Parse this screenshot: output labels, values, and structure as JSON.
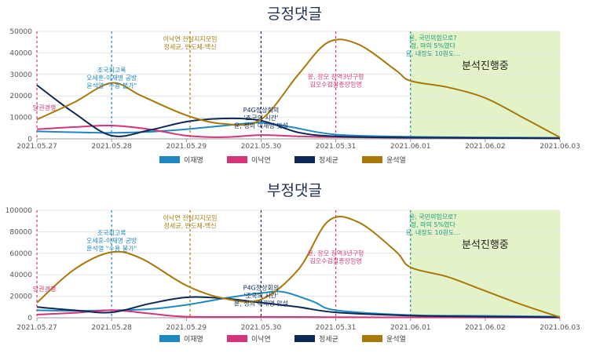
{
  "colors": {
    "이재명": "#1f88c2",
    "이낙연": "#d6347a",
    "정세균": "#0e2856",
    "윤석열": "#a8780a",
    "shade": "#e4f3c7"
  },
  "chart_data": [
    {
      "type": "line",
      "title": "긍정댓글",
      "categories": [
        "2021.05.27",
        "2021.05.28",
        "2021.05.29",
        "2021.05.30",
        "2021.05.31",
        "2021.06.01",
        "2021.06.02",
        "2021.06.03"
      ],
      "yticks": [
        "0",
        "10000",
        "20000",
        "30000",
        "40000",
        "50000"
      ],
      "ylim": [
        0,
        50000
      ],
      "legend_position": "bottom",
      "shaded_region": {
        "from": "2021.06.01",
        "to": "2021.06.03",
        "label": "분석진행중"
      },
      "series": [
        {
          "name": "이재명",
          "points": [
            [
              0,
              3500
            ],
            [
              0.6,
              3000
            ],
            [
              1,
              2800
            ],
            [
              1.5,
              3300
            ],
            [
              2,
              4500
            ],
            [
              2.6,
              6500
            ],
            [
              3,
              7500
            ],
            [
              3.4,
              5500
            ],
            [
              4,
              2000
            ],
            [
              5,
              1000
            ],
            [
              6,
              700
            ],
            [
              7,
              500
            ]
          ]
        },
        {
          "name": "이낙연",
          "points": [
            [
              0,
              4500
            ],
            [
              0.5,
              5500
            ],
            [
              1,
              6200
            ],
            [
              1.5,
              4500
            ],
            [
              2,
              1500
            ],
            [
              2.5,
              800
            ],
            [
              3,
              1800
            ],
            [
              3.5,
              1200
            ],
            [
              4,
              800
            ],
            [
              5,
              500
            ],
            [
              6,
              400
            ],
            [
              7,
              300
            ]
          ]
        },
        {
          "name": "정세균",
          "points": [
            [
              0,
              25000
            ],
            [
              0.5,
              12000
            ],
            [
              1,
              1500
            ],
            [
              1.5,
              4000
            ],
            [
              2,
              8000
            ],
            [
              2.5,
              9500
            ],
            [
              3,
              8500
            ],
            [
              3.5,
              3000
            ],
            [
              4,
              1200
            ],
            [
              5,
              600
            ],
            [
              6,
              400
            ],
            [
              7,
              300
            ]
          ]
        },
        {
          "name": "윤석열",
          "points": [
            [
              0,
              9000
            ],
            [
              0.5,
              17000
            ],
            [
              1,
              26000
            ],
            [
              1.4,
              20000
            ],
            [
              2,
              11000
            ],
            [
              2.5,
              7000
            ],
            [
              3,
              9000
            ],
            [
              3.5,
              30000
            ],
            [
              3.9,
              45000
            ],
            [
              4.3,
              44000
            ],
            [
              4.8,
              32000
            ],
            [
              5,
              27000
            ],
            [
              5.5,
              24000
            ],
            [
              6,
              19000
            ],
            [
              6.5,
              10000
            ],
            [
              7,
              700
            ]
          ]
        }
      ],
      "annotations": [
        {
          "x": 0,
          "color": "#d6347a",
          "lines": [
            "당권경쟁"
          ],
          "text_x": 0.1,
          "text_y": 13500
        },
        {
          "x": 1,
          "color": "#1f88c2",
          "lines": [
            "조국회고록",
            "오세훈-이재명 공방",
            "윤석열 \"수용 불가\""
          ],
          "text_x": 1.0,
          "text_y": 31000
        },
        {
          "x": 2.05,
          "color": "#a8780a",
          "lines": [
            "이낙연 전남지지모임",
            "정세균, 반도체-백신"
          ],
          "text_x": 2.05,
          "text_y": 45500
        },
        {
          "x": 3.0,
          "color": "#0e2856",
          "lines": [
            "P4G정상회의",
            "'조국의 시간'",
            "윤, 정의 이재명 맞설"
          ],
          "text_x": 3.0,
          "text_y": 12500
        },
        {
          "x": 4.0,
          "color": "#d6347a",
          "lines": [
            "윤, 장모 징역3년구형",
            "김오수검찰총장임명"
          ],
          "text_x": 4.0,
          "text_y": 28000
        },
        {
          "x": 5.0,
          "color": "#1a9a8a",
          "lines": [
            "윤, 국민의힘으로?",
            "정, 마의 5%였다",
            "윤, 내장도 10원도..."
          ],
          "text_x": 5.3,
          "text_y": 46000
        }
      ]
    },
    {
      "type": "line",
      "title": "부정댓글",
      "categories": [
        "2021.05.27",
        "2021.05.28",
        "2021.05.29",
        "2021.05.30",
        "2021.05.31",
        "2021.06.01",
        "2021.06.02",
        "2021.06.03"
      ],
      "yticks": [
        "0",
        "20000",
        "40000",
        "60000",
        "80000",
        "100000"
      ],
      "ylim": [
        0,
        100000
      ],
      "legend_position": "bottom",
      "shaded_region": {
        "from": "2021.06.01",
        "to": "2021.06.03",
        "label": "분석진행중"
      },
      "series": [
        {
          "name": "이재명",
          "points": [
            [
              0,
              7000
            ],
            [
              0.5,
              6500
            ],
            [
              1,
              7000
            ],
            [
              1.5,
              8000
            ],
            [
              2,
              12000
            ],
            [
              2.5,
              18000
            ],
            [
              3,
              23000
            ],
            [
              3.3,
              24000
            ],
            [
              3.7,
              15000
            ],
            [
              4,
              7000
            ],
            [
              5,
              2500
            ],
            [
              6,
              1800
            ],
            [
              7,
              1000
            ]
          ]
        },
        {
          "name": "이낙연",
          "points": [
            [
              0,
              3000
            ],
            [
              0.5,
              4500
            ],
            [
              1,
              7000
            ],
            [
              1.5,
              4000
            ],
            [
              2,
              1000
            ],
            [
              3,
              800
            ],
            [
              4,
              600
            ],
            [
              5,
              400
            ],
            [
              6,
              300
            ],
            [
              7,
              200
            ]
          ]
        },
        {
          "name": "정세균",
          "points": [
            [
              0,
              10000
            ],
            [
              0.5,
              7000
            ],
            [
              1,
              5000
            ],
            [
              1.5,
              13000
            ],
            [
              2,
              19000
            ],
            [
              2.5,
              18000
            ],
            [
              3,
              14000
            ],
            [
              3.5,
              10000
            ],
            [
              4,
              5000
            ],
            [
              5,
              2000
            ],
            [
              6,
              1000
            ],
            [
              7,
              500
            ]
          ]
        },
        {
          "name": "윤석열",
          "points": [
            [
              0,
              14000
            ],
            [
              0.5,
              45000
            ],
            [
              1,
              61000
            ],
            [
              1.4,
              55000
            ],
            [
              2,
              30000
            ],
            [
              2.5,
              18000
            ],
            [
              3,
              17000
            ],
            [
              3.5,
              45000
            ],
            [
              3.9,
              90000
            ],
            [
              4.3,
              89000
            ],
            [
              4.8,
              62000
            ],
            [
              5,
              47000
            ],
            [
              5.5,
              38000
            ],
            [
              6,
              25000
            ],
            [
              6.5,
              12000
            ],
            [
              7,
              500
            ]
          ]
        }
      ],
      "annotations": [
        {
          "x": 0,
          "color": "#d6347a",
          "lines": [
            "당권경쟁"
          ],
          "text_x": 0.1,
          "text_y": 25000
        },
        {
          "x": 1,
          "color": "#1f88c2",
          "lines": [
            "조국회고록",
            "오세훈-이재명 공방",
            "윤석열 \"수용 불가\""
          ],
          "text_x": 1.0,
          "text_y": 77000
        },
        {
          "x": 2.05,
          "color": "#a8780a",
          "lines": [
            "이낙연 전남지지모임",
            "정세균, 반도체-백신"
          ],
          "text_x": 2.05,
          "text_y": 91000
        },
        {
          "x": 3.0,
          "color": "#0e2856",
          "lines": [
            "P4G정상회의",
            "'조국의 시간'",
            "윤, 정의 이재명 맞설"
          ],
          "text_x": 3.0,
          "text_y": 26000
        },
        {
          "x": 4.0,
          "color": "#d6347a",
          "lines": [
            "윤, 장모 징역3년구형",
            "김오수검찰총장임명"
          ],
          "text_x": 4.0,
          "text_y": 58000
        },
        {
          "x": 5.0,
          "color": "#1a9a8a",
          "lines": [
            "윤, 국민의힘으로?",
            "정, 마의 5%였다",
            "윤, 내장도 10원도..."
          ],
          "text_x": 5.3,
          "text_y": 92000
        }
      ]
    }
  ]
}
